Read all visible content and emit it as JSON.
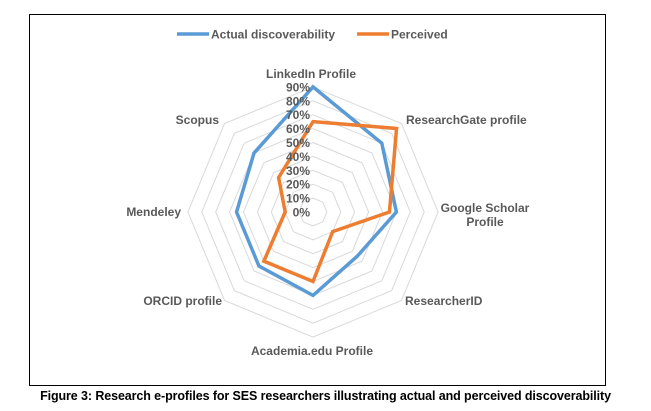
{
  "caption": "Figure 3: Research e-profiles for SES researchers illustrating actual and perceived discoverability",
  "chart_data": {
    "type": "radar",
    "title": "",
    "categories": [
      "LinkedIn Profile",
      "ResearchGate profile",
      "Google Scholar Profile",
      "ResearcherID",
      "Academia.edu Profile",
      "ORCID profile",
      "Mendeley",
      "Scopus"
    ],
    "category_label_lines": [
      [
        "LinkedIn Profile"
      ],
      [
        "ResearchGate profile"
      ],
      [
        "Google Scholar",
        "Profile"
      ],
      [
        "ResearcherID"
      ],
      [
        "Academia.edu Profile"
      ],
      [
        "ORCID profile"
      ],
      [
        "Mendeley"
      ],
      [
        "Scopus"
      ]
    ],
    "series": [
      {
        "name": "Actual discoverability",
        "color": "#5B9BD5",
        "values": [
          90,
          70,
          60,
          45,
          60,
          55,
          55,
          60
        ]
      },
      {
        "name": "Perceived",
        "color": "#ED7D31",
        "values": [
          65,
          85,
          55,
          20,
          50,
          50,
          20,
          35
        ]
      }
    ],
    "rlim": [
      0,
      90
    ],
    "ticks": [
      "0%",
      "10%",
      "20%",
      "30%",
      "40%",
      "50%",
      "60%",
      "70%",
      "80%",
      "90%"
    ],
    "tick_values": [
      0,
      10,
      20,
      30,
      40,
      50,
      60,
      70,
      80,
      90
    ],
    "grid": true,
    "grid_color": "#D9D9D9",
    "legend_position": "top"
  }
}
